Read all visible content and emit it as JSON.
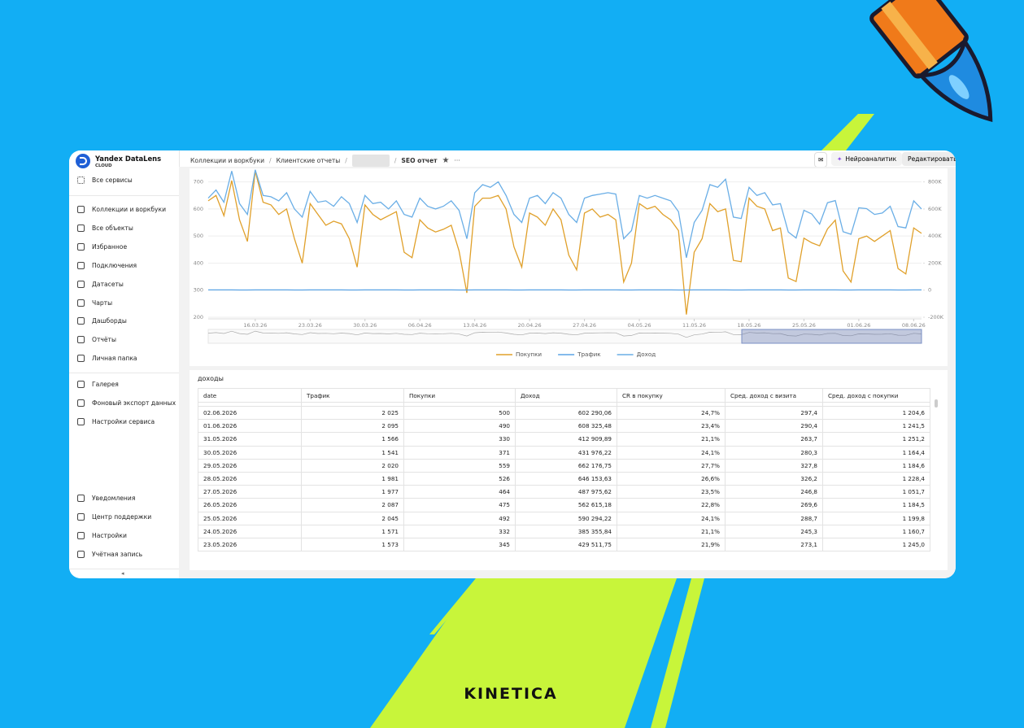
{
  "sidebar": {
    "brand": "Yandex DataLens",
    "brand_sub": "CLOUD",
    "all_services": "Все сервисы",
    "main": [
      "Коллекции и воркбуки",
      "Все объекты",
      "Избранное",
      "Подключения",
      "Датасеты",
      "Чарты",
      "Дашборды",
      "Отчёты",
      "Личная папка"
    ],
    "extra": [
      "Галерея",
      "Фоновый экспорт данных",
      "Настройки сервиса"
    ],
    "bottom": [
      "Уведомления",
      "Центр поддержки",
      "Настройки",
      "Учётная запись"
    ]
  },
  "header": {
    "breadcrumbs": [
      "Коллекции и воркбуки",
      "Клиентские отчеты"
    ],
    "current": "SEO отчет",
    "ai_button": "Нейроаналитик",
    "edit_button": "Редактировать"
  },
  "chart_data": {
    "type": "line",
    "x": [
      "10.03.26",
      "11.03.26",
      "12.03.26",
      "13.03.26",
      "14.03.26",
      "15.03.26",
      "16.03.26",
      "17.03.26",
      "18.03.26",
      "19.03.26",
      "20.03.26",
      "21.03.26",
      "22.03.26",
      "23.03.26",
      "24.03.26",
      "25.03.26",
      "26.03.26",
      "27.03.26",
      "28.03.26",
      "29.03.26",
      "30.03.26",
      "31.03.26",
      "01.04.26",
      "02.04.26",
      "03.04.26",
      "04.04.26",
      "05.04.26",
      "06.04.26",
      "07.04.26",
      "08.04.26",
      "09.04.26",
      "10.04.26",
      "11.04.26",
      "12.04.26",
      "13.04.26",
      "14.04.26",
      "15.04.26",
      "16.04.26",
      "17.04.26",
      "18.04.26",
      "19.04.26",
      "20.04.26",
      "21.04.26",
      "22.04.26",
      "23.04.26",
      "24.04.26",
      "25.04.26",
      "26.04.26",
      "27.04.26",
      "28.04.26",
      "29.04.26",
      "30.04.26",
      "01.05.26",
      "02.05.26",
      "03.05.26",
      "04.05.26",
      "05.05.26",
      "06.05.26",
      "07.05.26",
      "08.05.26",
      "09.05.26",
      "10.05.26",
      "11.05.26",
      "12.05.26",
      "13.05.26",
      "14.05.26",
      "15.05.26",
      "16.05.26",
      "17.05.26",
      "18.05.26",
      "19.05.26",
      "20.05.26",
      "21.05.26",
      "22.05.26",
      "23.05.26",
      "24.05.26",
      "25.05.26",
      "26.05.26",
      "27.05.26",
      "28.05.26",
      "29.05.26",
      "30.05.26",
      "31.05.26",
      "01.06.26",
      "02.06.26",
      "03.06.26",
      "04.06.26",
      "05.06.26",
      "06.06.26",
      "07.06.26",
      "08.06.26",
      "09.06.26"
    ],
    "xticks": [
      "16.03.26",
      "23.03.26",
      "30.03.26",
      "06.04.26",
      "13.04.26",
      "20.04.26",
      "27.04.26",
      "04.05.26",
      "11.05.26",
      "18.05.26",
      "25.05.26",
      "01.06.26",
      "08.06.26"
    ],
    "ylim": [
      200,
      750
    ],
    "yticks": [
      200,
      300,
      400,
      500,
      600,
      700
    ],
    "y2lim": [
      -200000,
      900000
    ],
    "y2ticks": [
      {
        "value": -200000,
        "label": "-200K"
      },
      0,
      {
        "value": 200000,
        "label": "200K"
      },
      {
        "value": 400000,
        "label": "400K"
      },
      {
        "value": 600000,
        "label": "600K"
      },
      {
        "value": 800000,
        "label": "800K"
      }
    ],
    "grid": true,
    "series": [
      {
        "name": "Покупки",
        "color": "#e0a02a",
        "values": [
          630,
          650,
          575,
          705,
          560,
          480,
          740,
          625,
          615,
          580,
          600,
          490,
          400,
          620,
          580,
          540,
          555,
          545,
          490,
          385,
          615,
          580,
          560,
          575,
          590,
          440,
          420,
          560,
          530,
          515,
          525,
          540,
          445,
          290,
          610,
          640,
          640,
          650,
          600,
          460,
          385,
          585,
          570,
          540,
          600,
          560,
          430,
          375,
          585,
          600,
          570,
          580,
          560,
          330,
          400,
          620,
          600,
          610,
          580,
          560,
          520,
          210,
          440,
          490,
          620,
          590,
          600,
          410,
          405,
          640,
          610,
          600,
          520,
          530,
          345,
          332,
          492,
          475,
          464,
          526,
          559,
          371,
          330,
          490,
          500,
          480,
          500,
          520,
          380,
          360,
          530,
          510
        ]
      },
      {
        "name": "Трафик",
        "color": "#5ba4e6",
        "axis": "y2",
        "values": [
          2010,
          2040,
          1980,
          2100,
          1620,
          1560,
          2120,
          2030,
          2010,
          1990,
          2020,
          1610,
          1540,
          2050,
          1990,
          1970,
          2000,
          1980,
          1600,
          1530,
          2040,
          2000,
          1990,
          1980,
          2010,
          1590,
          1550,
          2030,
          1980,
          1960,
          1990,
          2000,
          1580,
          1500,
          2060,
          2100,
          2080,
          2090,
          2000,
          1620,
          1540,
          2030,
          2010,
          1990,
          2050,
          2000,
          1580,
          1530,
          2020,
          2040,
          2030,
          2040,
          2000,
          1480,
          1520,
          2040,
          2020,
          2030,
          2000,
          1990,
          1560,
          1410,
          1900,
          1960,
          2110,
          2080,
          2100,
          1580,
          1570,
          2090,
          2060,
          2050,
          1980,
          1990,
          1573,
          1571,
          2045,
          2087,
          1977,
          1981,
          2020,
          1541,
          1566,
          2095,
          2025,
          1990,
          2000,
          2040,
          1580,
          1560,
          2060,
          2030
        ]
      },
      {
        "name": "Доход",
        "color": "#6aaee6",
        "axis": "y2",
        "values": [
          680000,
          740000,
          650000,
          880000,
          640000,
          560000,
          890000,
          700000,
          690000,
          660000,
          720000,
          600000,
          540000,
          730000,
          650000,
          660000,
          620000,
          690000,
          640000,
          500000,
          700000,
          640000,
          650000,
          600000,
          660000,
          560000,
          540000,
          680000,
          620000,
          600000,
          620000,
          660000,
          590000,
          380000,
          720000,
          780000,
          760000,
          800000,
          700000,
          560000,
          500000,
          680000,
          700000,
          640000,
          720000,
          680000,
          560000,
          500000,
          680000,
          700000,
          710000,
          720000,
          710000,
          380000,
          440000,
          700000,
          680000,
          700000,
          680000,
          660000,
          580000,
          240000,
          500000,
          590000,
          780000,
          760000,
          820000,
          540000,
          530000,
          760000,
          700000,
          720000,
          630000,
          640000,
          429512,
          385356,
          590294,
          562615,
          487976,
          646154,
          662177,
          431976,
          412910,
          608325,
          602290,
          560000,
          570000,
          620000,
          470000,
          460000,
          660000,
          600000
        ]
      }
    ]
  },
  "table": {
    "title": "доходы",
    "columns": [
      "date",
      "Трафик",
      "Покупки",
      "Доход",
      "CR в покупку",
      "Сред. доход с визита",
      "Сред. доход с покупки"
    ],
    "rows": [
      [
        "02.06.2026",
        "2 025",
        "500",
        "602 290,06",
        "24,7%",
        "297,4",
        "1 204,6"
      ],
      [
        "01.06.2026",
        "2 095",
        "490",
        "608 325,48",
        "23,4%",
        "290,4",
        "1 241,5"
      ],
      [
        "31.05.2026",
        "1 566",
        "330",
        "412 909,89",
        "21,1%",
        "263,7",
        "1 251,2"
      ],
      [
        "30.05.2026",
        "1 541",
        "371",
        "431 976,22",
        "24,1%",
        "280,3",
        "1 164,4"
      ],
      [
        "29.05.2026",
        "2 020",
        "559",
        "662 176,75",
        "27,7%",
        "327,8",
        "1 184,6"
      ],
      [
        "28.05.2026",
        "1 981",
        "526",
        "646 153,63",
        "26,6%",
        "326,2",
        "1 228,4"
      ],
      [
        "27.05.2026",
        "1 977",
        "464",
        "487 975,62",
        "23,5%",
        "246,8",
        "1 051,7"
      ],
      [
        "26.05.2026",
        "2 087",
        "475",
        "562 615,18",
        "22,8%",
        "269,6",
        "1 184,5"
      ],
      [
        "25.05.2026",
        "2 045",
        "492",
        "590 294,22",
        "24,1%",
        "288,7",
        "1 199,8"
      ],
      [
        "24.05.2026",
        "1 571",
        "332",
        "385 355,84",
        "21,1%",
        "245,3",
        "1 160,7"
      ],
      [
        "23.05.2026",
        "1 573",
        "345",
        "429 511,75",
        "21,9%",
        "273,1",
        "1 245,0"
      ]
    ]
  },
  "brand_footer": "KINETICA"
}
